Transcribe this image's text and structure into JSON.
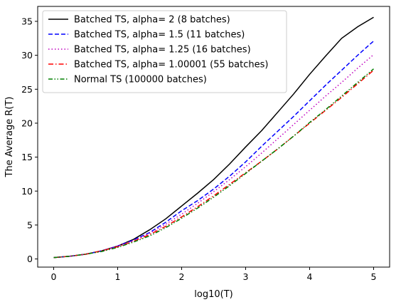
{
  "chart_data": {
    "type": "line",
    "xlabel": "log10(T)",
    "ylabel": "The Average R(T)",
    "xlim": [
      -0.25,
      5.25
    ],
    "ylim": [
      -1.2,
      37.2
    ],
    "xticks": [
      0,
      1,
      2,
      3,
      4,
      5
    ],
    "yticks": [
      0,
      5,
      10,
      15,
      20,
      25,
      30,
      35
    ],
    "xtick_labels": [
      "0",
      "1",
      "2",
      "3",
      "4",
      "5"
    ],
    "ytick_labels": [
      "0",
      "5",
      "10",
      "15",
      "20",
      "25",
      "30",
      "35"
    ],
    "legend_position": "top-left",
    "grid": false,
    "x": [
      0,
      0.25,
      0.5,
      0.75,
      1.0,
      1.25,
      1.5,
      1.75,
      2.0,
      2.25,
      2.5,
      2.75,
      3.0,
      3.25,
      3.5,
      3.75,
      4.0,
      4.25,
      4.5,
      4.75,
      5.0
    ],
    "series": [
      {
        "name": "Batched TS, alpha= 2 (8 batches)",
        "color": "#000000",
        "dash": "solid",
        "values": [
          0.2,
          0.4,
          0.7,
          1.2,
          1.9,
          2.9,
          4.3,
          5.9,
          7.8,
          9.7,
          11.7,
          14.0,
          16.5,
          18.9,
          21.6,
          24.3,
          27.2,
          29.9,
          32.5,
          34.2,
          35.6
        ]
      },
      {
        "name": "Batched TS, alpha= 1.5 (11 batches)",
        "color": "#0000ff",
        "dash": "dashed",
        "values": [
          0.2,
          0.4,
          0.7,
          1.2,
          1.9,
          2.8,
          3.9,
          5.4,
          7.1,
          8.6,
          10.3,
          12.2,
          14.3,
          16.6,
          18.8,
          21.0,
          23.3,
          25.6,
          27.8,
          30.0,
          32.1
        ]
      },
      {
        "name": "Batched TS, alpha= 1.25 (16 batches)",
        "color": "#bf00bf",
        "dash": "dotted",
        "values": [
          0.2,
          0.4,
          0.7,
          1.2,
          1.9,
          2.7,
          3.8,
          5.1,
          6.6,
          8.2,
          9.9,
          11.7,
          13.6,
          15.6,
          17.7,
          19.8,
          21.9,
          24.0,
          26.0,
          28.1,
          30.1
        ]
      },
      {
        "name": "Batched TS, alpha= 1.00001 (55 batches)",
        "color": "#ff0000",
        "dash": "dashdot",
        "values": [
          0.2,
          0.4,
          0.7,
          1.2,
          1.8,
          2.6,
          3.6,
          4.8,
          6.2,
          7.7,
          9.3,
          11.0,
          12.7,
          14.4,
          16.2,
          18.1,
          20.0,
          21.9,
          23.8,
          25.8,
          27.8
        ]
      },
      {
        "name": "Normal TS (100000 batches)",
        "color": "#008000",
        "dash": "dashdotdot",
        "values": [
          0.2,
          0.4,
          0.7,
          1.1,
          1.7,
          2.5,
          3.4,
          4.6,
          6.0,
          7.5,
          9.1,
          10.8,
          12.6,
          14.4,
          16.2,
          18.1,
          20.1,
          22.0,
          24.0,
          26.0,
          28.0
        ]
      }
    ]
  }
}
